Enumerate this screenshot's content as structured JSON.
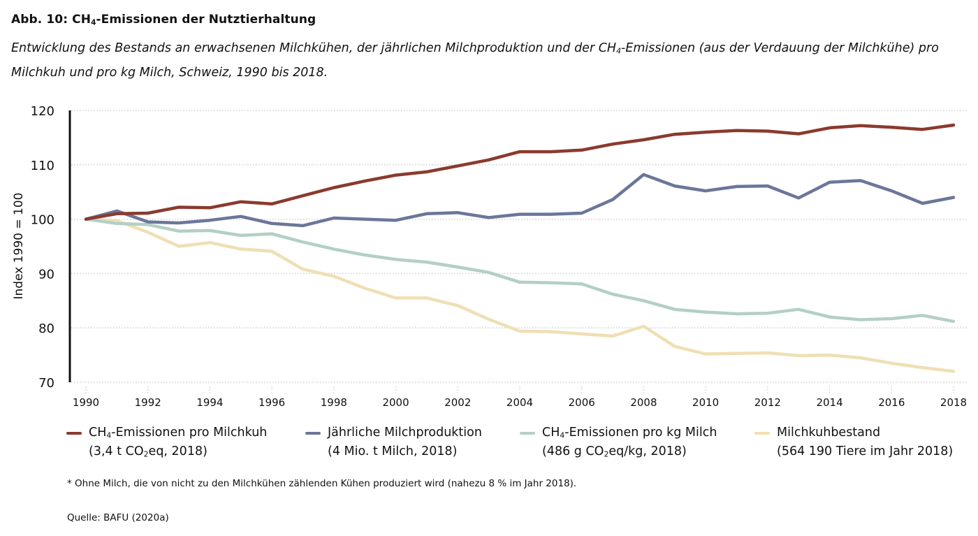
{
  "title": {
    "prefix": "Abb. 10:  CH",
    "sub": "4",
    "suffix": "-Emissionen der Nutztierhaltung"
  },
  "subtitle": {
    "part1": "Entwicklung des Bestands an erwachsenen Milchkühen, der jährlichen Milchproduktion und der CH",
    "sub": "4",
    "part2": "-Emissionen (aus der Verdauung der Milch­kühe) pro Milchkuh und pro kg Milch, Schweiz, 1990 bis 2018."
  },
  "footnote": "* Ohne Milch, die von nicht zu den Milchkühen zählenden Kühen produziert wird (nahezu 8 % im Jahr 2018).",
  "source": "Quelle: BAFU (2020a)",
  "legend": [
    {
      "line1_pre": "CH",
      "line1_sub": "4",
      "line1_post": "-Emissionen pro Milchkuh",
      "line2_pre": "(3,4 t CO",
      "line2_sub": "2",
      "line2_post": "eq, 2018)"
    },
    {
      "line1_pre": "Jährliche Milchproduktion",
      "line1_sub": "",
      "line1_post": "",
      "line2_pre": "(4 Mio. t Milch, 2018)",
      "line2_sub": "",
      "line2_post": ""
    },
    {
      "line1_pre": "CH",
      "line1_sub": "4",
      "line1_post": "-Emissionen pro kg Milch",
      "line2_pre": "(486 g CO",
      "line2_sub": "2",
      "line2_post": "eq/kg, 2018)"
    },
    {
      "line1_pre": "Milchkuhbestand",
      "line1_sub": "",
      "line1_post": "",
      "line2_pre": "(564 190 Tiere im Jahr 2018)",
      "line2_sub": "",
      "line2_post": ""
    }
  ],
  "chart_data": {
    "type": "line",
    "title": "Abb. 10: CH4-Emissionen der Nutztierhaltung",
    "xlabel": "",
    "ylabel": "Index 1990 = 100",
    "x": [
      1990,
      1991,
      1992,
      1993,
      1994,
      1995,
      1996,
      1997,
      1998,
      1999,
      2000,
      2001,
      2002,
      2003,
      2004,
      2005,
      2006,
      2007,
      2008,
      2009,
      2010,
      2011,
      2012,
      2013,
      2014,
      2015,
      2016,
      2017,
      2018
    ],
    "xticks": [
      1990,
      1992,
      1994,
      1996,
      1998,
      2000,
      2002,
      2004,
      2006,
      2008,
      2010,
      2012,
      2014,
      2016,
      2018
    ],
    "yticks": [
      70,
      80,
      90,
      100,
      110,
      120
    ],
    "xlim": [
      1990,
      2018
    ],
    "ylim": [
      70,
      120
    ],
    "grid": "horizontal dotted",
    "legend_position": "bottom",
    "series": [
      {
        "name": "CH4-Emissionen pro Milchkuh (3,4 t CO2eq, 2018)",
        "color": "#8b3a2e",
        "values": [
          100,
          101.0,
          101.1,
          102.2,
          102.1,
          103.2,
          102.8,
          104.3,
          105.8,
          107.0,
          108.1,
          108.7,
          109.8,
          110.9,
          112.4,
          112.4,
          112.7,
          113.8,
          114.6,
          115.6,
          116.0,
          116.3,
          116.2,
          115.7,
          116.8,
          117.2,
          116.9,
          116.5,
          117.3
        ]
      },
      {
        "name": "Jährliche Milchproduktion (4 Mio. t Milch, 2018)",
        "color": "#6b7699",
        "values": [
          100,
          101.5,
          99.5,
          99.3,
          99.8,
          100.5,
          99.2,
          98.8,
          100.2,
          100.0,
          99.8,
          101.0,
          101.2,
          100.3,
          100.9,
          100.9,
          101.1,
          103.6,
          108.2,
          106.1,
          105.2,
          106.0,
          106.1,
          103.9,
          106.8,
          107.1,
          105.2,
          102.9,
          104.0
        ]
      },
      {
        "name": "CH4-Emissionen pro kg Milch (486 g CO2eq/kg, 2018)",
        "color": "#b3cfc6",
        "values": [
          100,
          99.2,
          99.0,
          97.8,
          97.9,
          97.0,
          97.3,
          95.8,
          94.5,
          93.4,
          92.6,
          92.1,
          91.2,
          90.2,
          88.4,
          88.3,
          88.1,
          86.2,
          85.0,
          83.4,
          82.9,
          82.6,
          82.7,
          83.4,
          82.0,
          81.5,
          81.7,
          82.3,
          81.2
        ]
      },
      {
        "name": "Milchkuhbestand (564 190 Tiere im Jahr 2018)",
        "color": "#f0dfb4",
        "values": [
          100,
          99.7,
          97.6,
          95.0,
          95.7,
          94.5,
          94.1,
          90.8,
          89.5,
          87.3,
          85.5,
          85.5,
          84.1,
          81.6,
          79.4,
          79.3,
          78.9,
          78.5,
          80.3,
          76.6,
          75.2,
          75.3,
          75.4,
          74.9,
          75.0,
          74.5,
          73.5,
          72.7,
          72.0
        ]
      }
    ]
  }
}
